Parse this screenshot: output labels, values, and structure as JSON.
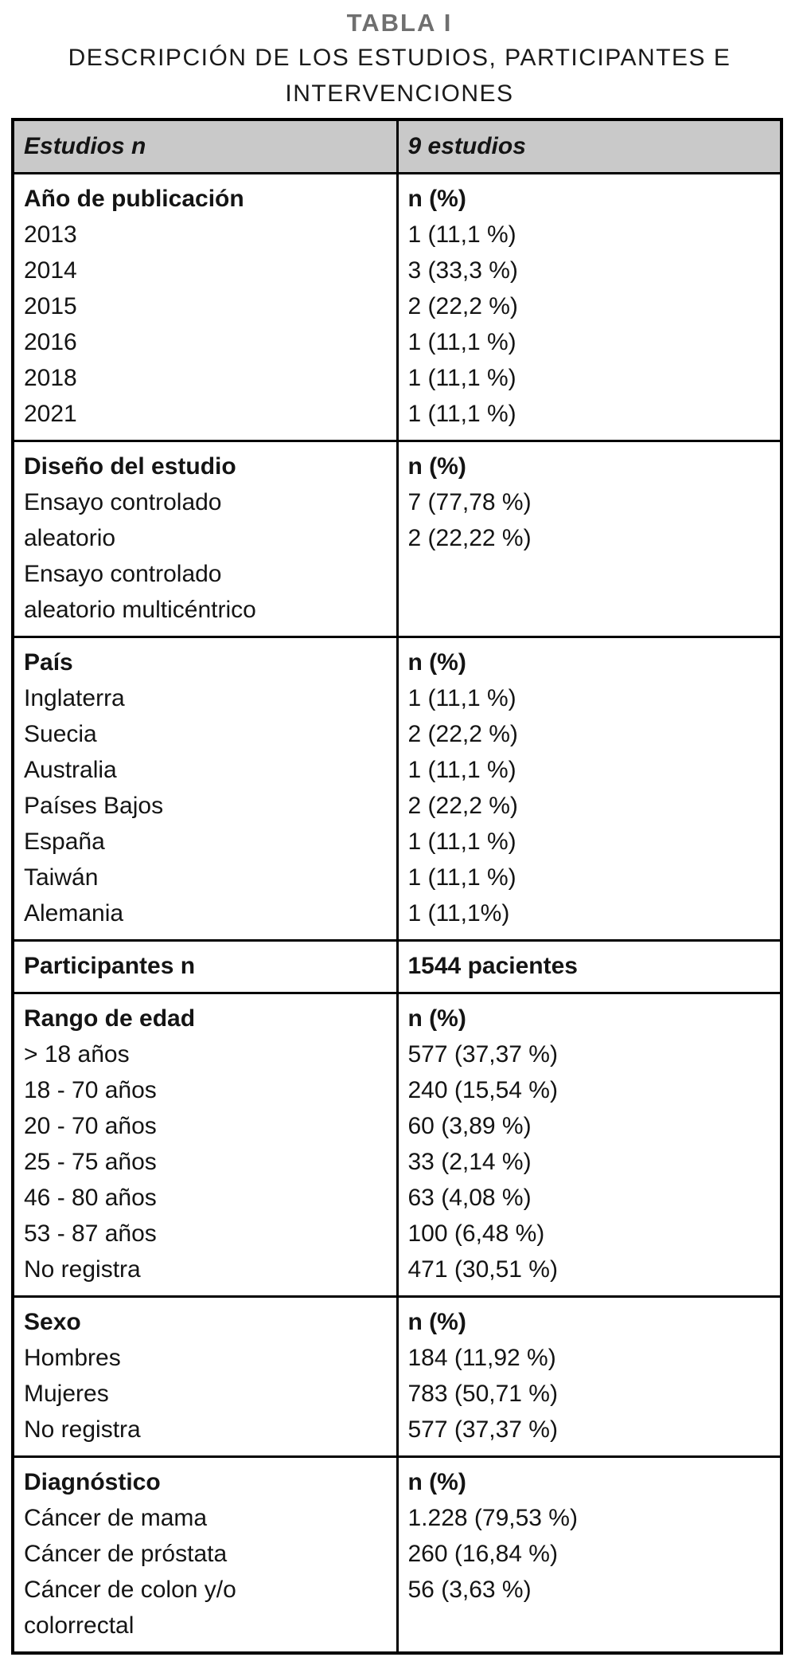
{
  "title": {
    "label": "TABLA I",
    "subtitle_line1": "DESCRIPCIÓN DE LOS ESTUDIOS, PARTICIPANTES E",
    "subtitle_line2": "INTERVENCIONES"
  },
  "colors": {
    "header_background": "#c9c9c9",
    "table_label_gray": "#6f6f6f",
    "border": "#000000",
    "text": "#141414"
  },
  "table": {
    "header": {
      "col1": "Estudios n",
      "col2": "9 estudios"
    },
    "sections": [
      {
        "left": [
          {
            "text": "Año de publicación",
            "bold": true
          },
          "2013",
          "2014",
          "2015",
          "2016",
          "2018",
          "2021"
        ],
        "right": [
          {
            "text": "n (%)",
            "bold": true
          },
          "1 (11,1 %)",
          "3 (33,3 %)",
          "2 (22,2 %)",
          "1 (11,1 %)",
          "1 (11,1 %)",
          "1 (11,1 %)"
        ]
      },
      {
        "left": [
          {
            "text": "Diseño del estudio",
            "bold": true
          },
          "Ensayo controlado",
          "aleatorio",
          "Ensayo controlado",
          "aleatorio multicéntrico"
        ],
        "right": [
          {
            "text": "n (%)",
            "bold": true
          },
          "7 (77,78 %)",
          "2 (22,22 %)"
        ]
      },
      {
        "left": [
          {
            "text": "País",
            "bold": true
          },
          "Inglaterra",
          "Suecia",
          "Australia",
          "Países Bajos",
          "España",
          "Taiwán",
          "Alemania"
        ],
        "right": [
          {
            "text": "n (%)",
            "bold": true
          },
          "1 (11,1 %)",
          "2 (22,2 %)",
          "1 (11,1 %)",
          "2 (22,2 %)",
          "1 (11,1 %)",
          "1 (11,1 %)",
          "1 (11,1%)"
        ]
      },
      {
        "left": [
          {
            "text": "Participantes n",
            "bold": true
          }
        ],
        "right": [
          {
            "text": "1544 pacientes",
            "bold": true
          }
        ]
      },
      {
        "left": [
          {
            "text": "Rango de edad",
            "bold": true
          },
          "> 18 años",
          "18 - 70 años",
          "20 - 70 años",
          "25 - 75 años",
          "46 - 80 años",
          "53 - 87 años",
          "No registra"
        ],
        "right": [
          {
            "text": "n (%)",
            "bold": true
          },
          "577 (37,37 %)",
          "240 (15,54 %)",
          "60 (3,89 %)",
          "33 (2,14 %)",
          "63 (4,08 %)",
          "100 (6,48 %)",
          "471 (30,51 %)"
        ]
      },
      {
        "left": [
          {
            "text": "Sexo",
            "bold": true
          },
          "Hombres",
          "Mujeres",
          "No registra"
        ],
        "right": [
          {
            "text": "n (%)",
            "bold": true
          },
          "184 (11,92 %)",
          "783 (50,71 %)",
          "577 (37,37 %)"
        ]
      },
      {
        "left": [
          {
            "text": "Diagnóstico",
            "bold": true
          },
          "Cáncer de mama",
          "Cáncer de próstata",
          "Cáncer de colon y/o",
          "colorrectal"
        ],
        "right": [
          {
            "text": "n (%)",
            "bold": true
          },
          "1.228 (79,53 %)",
          "260 (16,84 %)",
          "56 (3,63 %)"
        ]
      }
    ]
  }
}
